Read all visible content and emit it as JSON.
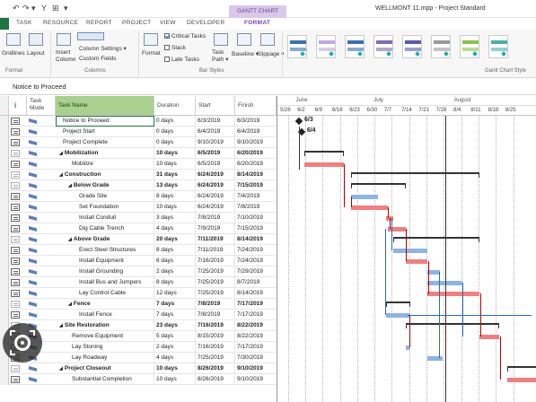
{
  "window": {
    "quick_access": [
      "↶",
      "↷",
      "▾",
      "Y",
      "⊞",
      "▾"
    ],
    "contextual_tab": "GANTT CHART TOOLS",
    "doc_title": "WELLMONT 11.mpp - Project Standard"
  },
  "tabs": [
    {
      "label": "TASK",
      "active": false
    },
    {
      "label": "RESOURCE",
      "active": false
    },
    {
      "label": "REPORT",
      "active": false
    },
    {
      "label": "PROJECT",
      "active": false
    },
    {
      "label": "VIEW",
      "active": false
    },
    {
      "label": "DEVELOPER",
      "active": false
    },
    {
      "label": "FORMAT",
      "active": true
    }
  ],
  "ribbon": {
    "format_group": {
      "label": "Format",
      "gridlines": "Gridlines",
      "layout": "Layout"
    },
    "columns_group": {
      "label": "Columns",
      "insert_column": "Insert Column",
      "column_settings": "Column Settings ▾",
      "custom_fields": "Custom Fields"
    },
    "bar_styles_group": {
      "label": "Bar Styles",
      "format": "Format",
      "critical_tasks": {
        "label": "Critical Tasks",
        "checked": true
      },
      "slack": {
        "label": "Slack",
        "checked": false
      },
      "late_tasks": {
        "label": "Late Tasks",
        "checked": false
      },
      "task_path": "Task Path ▾",
      "baseline": "Baseline ▾",
      "slippage": "Slippage ▾"
    },
    "gantt_style_group": {
      "label": "Gantt Chart Style",
      "swatches": [
        "#3a6fb5",
        "#c0a9df",
        "#3a6fb5",
        "#7f6bb3",
        "#5b5ba8",
        "#999999",
        "#8bc34a",
        "#49b0a8"
      ]
    }
  },
  "entry_bar": {
    "value": "Notice to Proceed"
  },
  "columns": {
    "info": "i",
    "mode": "Task Mode",
    "name": "Task Name",
    "duration": "Duration",
    "start": "Start",
    "finish": "Finish"
  },
  "tasks": [
    {
      "name": "Notice to Proceed",
      "duration": "0 days",
      "start": "6/3/2019",
      "finish": "6/3/2019",
      "level": 1,
      "summary": false
    },
    {
      "name": "Project Start",
      "duration": "0 days",
      "start": "6/4/2019",
      "finish": "6/4/2019",
      "level": 1,
      "summary": false
    },
    {
      "name": "Project Complete",
      "duration": "0 days",
      "start": "9/10/2019",
      "finish": "9/10/2019",
      "level": 1,
      "summary": false
    },
    {
      "name": "Mobilization",
      "duration": "10 days",
      "start": "6/5/2019",
      "finish": "6/20/2019",
      "level": 1,
      "summary": true
    },
    {
      "name": "Mobilize",
      "duration": "10 days",
      "start": "6/5/2019",
      "finish": "6/20/2019",
      "level": 2,
      "summary": false
    },
    {
      "name": "Construction",
      "duration": "31 days",
      "start": "6/24/2019",
      "finish": "8/14/2019",
      "level": 1,
      "summary": true
    },
    {
      "name": "Below Grade",
      "duration": "13 days",
      "start": "6/24/2019",
      "finish": "7/15/2019",
      "level": 2,
      "summary": true
    },
    {
      "name": "Grade Site",
      "duration": "8 days",
      "start": "6/24/2019",
      "finish": "7/4/2019",
      "level": 3,
      "summary": false
    },
    {
      "name": "Set Foundation",
      "duration": "10 days",
      "start": "6/24/2019",
      "finish": "7/8/2019",
      "level": 3,
      "summary": false
    },
    {
      "name": "Install Conduit",
      "duration": "3 days",
      "start": "7/8/2019",
      "finish": "7/10/2019",
      "level": 3,
      "summary": false
    },
    {
      "name": "Dig Cable Trench",
      "duration": "4 days",
      "start": "7/9/2019",
      "finish": "7/15/2019",
      "level": 3,
      "summary": false
    },
    {
      "name": "Above Grade",
      "duration": "20 days",
      "start": "7/11/2019",
      "finish": "8/14/2019",
      "level": 2,
      "summary": true
    },
    {
      "name": "Erect Steel Structures",
      "duration": "8 days",
      "start": "7/11/2019",
      "finish": "7/24/2019",
      "level": 3,
      "summary": false
    },
    {
      "name": "Install Equipment",
      "duration": "6 days",
      "start": "7/16/2019",
      "finish": "7/24/2019",
      "level": 3,
      "summary": false
    },
    {
      "name": "Install Grounding",
      "duration": "2 days",
      "start": "7/25/2019",
      "finish": "7/29/2019",
      "level": 3,
      "summary": false
    },
    {
      "name": "Install Bus and Jumpers",
      "duration": "8 days",
      "start": "7/25/2019",
      "finish": "8/7/2019",
      "level": 3,
      "summary": false
    },
    {
      "name": "Lay Control Cable",
      "duration": "12 days",
      "start": "7/25/2019",
      "finish": "8/14/2019",
      "level": 3,
      "summary": false
    },
    {
      "name": "Fence",
      "duration": "7 days",
      "start": "7/8/2019",
      "finish": "7/17/2019",
      "level": 2,
      "summary": true
    },
    {
      "name": "Install Fence",
      "duration": "7 days",
      "start": "7/8/2019",
      "finish": "7/17/2019",
      "level": 3,
      "summary": false
    },
    {
      "name": "Site Restoration",
      "duration": "23 days",
      "start": "7/16/2019",
      "finish": "8/22/2019",
      "level": 1,
      "summary": true
    },
    {
      "name": "Remove Equipment",
      "duration": "5 days",
      "start": "8/15/2019",
      "finish": "8/22/2019",
      "level": 2,
      "summary": false
    },
    {
      "name": "Lay Stoning",
      "duration": "2 days",
      "start": "7/16/2019",
      "finish": "7/17/2019",
      "level": 2,
      "summary": false
    },
    {
      "name": "Lay Roadway",
      "duration": "4 days",
      "start": "7/25/2019",
      "finish": "7/30/2019",
      "level": 2,
      "summary": false
    },
    {
      "name": "Project Closeout",
      "duration": "10 days",
      "start": "8/26/2019",
      "finish": "9/10/2019",
      "level": 1,
      "summary": true
    },
    {
      "name": "Substantial Completion",
      "duration": "10 days",
      "start": "8/26/2019",
      "finish": "9/10/2019",
      "level": 2,
      "summary": false
    }
  ],
  "timescale": {
    "months": [
      "June",
      "July",
      "August"
    ],
    "weeks": [
      "5/26",
      "6/2",
      "6/9",
      "6/16",
      "6/23",
      "6/30",
      "7/7",
      "7/14",
      "7/21",
      "7/28",
      "8/4",
      "8/11",
      "8/18",
      "8/25"
    ]
  },
  "milestone_labels": [
    "6/3",
    "6/4"
  ],
  "colors": {
    "critical": "#f08080",
    "normal": "#8eb4e3",
    "summary": "#333333",
    "link_red": "#b00000",
    "link_blue": "#2a6ab5",
    "accent": "#7a3fb0"
  }
}
